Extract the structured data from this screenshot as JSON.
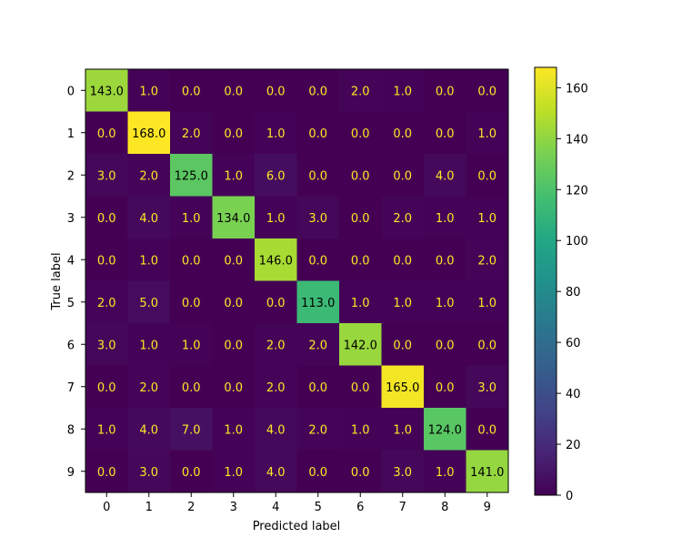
{
  "chart_data": {
    "type": "heatmap",
    "title": "",
    "xlabel": "Predicted label",
    "ylabel": "True label",
    "x_categories": [
      "0",
      "1",
      "2",
      "3",
      "4",
      "5",
      "6",
      "7",
      "8",
      "9"
    ],
    "y_categories": [
      "0",
      "1",
      "2",
      "3",
      "4",
      "5",
      "6",
      "7",
      "8",
      "9"
    ],
    "values": [
      [
        143,
        1,
        0,
        0,
        0,
        0,
        2,
        1,
        0,
        0
      ],
      [
        0,
        168,
        2,
        0,
        1,
        0,
        0,
        0,
        0,
        1
      ],
      [
        3,
        2,
        125,
        1,
        6,
        0,
        0,
        0,
        4,
        0
      ],
      [
        0,
        4,
        1,
        134,
        1,
        3,
        0,
        2,
        1,
        1
      ],
      [
        0,
        1,
        0,
        0,
        146,
        0,
        0,
        0,
        0,
        2
      ],
      [
        2,
        5,
        0,
        0,
        0,
        113,
        1,
        1,
        1,
        1
      ],
      [
        3,
        1,
        1,
        0,
        2,
        2,
        142,
        0,
        0,
        0
      ],
      [
        0,
        2,
        0,
        0,
        2,
        0,
        0,
        165,
        0,
        3
      ],
      [
        1,
        4,
        7,
        1,
        4,
        2,
        1,
        1,
        124,
        0
      ],
      [
        0,
        3,
        0,
        1,
        4,
        0,
        0,
        3,
        1,
        141
      ]
    ],
    "value_format": "0.0",
    "colormap": "viridis",
    "color_range": [
      0,
      168
    ],
    "colorbar_ticks": [
      0,
      20,
      40,
      60,
      80,
      100,
      120,
      140,
      160
    ],
    "text_colors": {
      "light": "#fde725",
      "dark": "#000000"
    },
    "legend": "colorbar-right",
    "grid": false
  }
}
